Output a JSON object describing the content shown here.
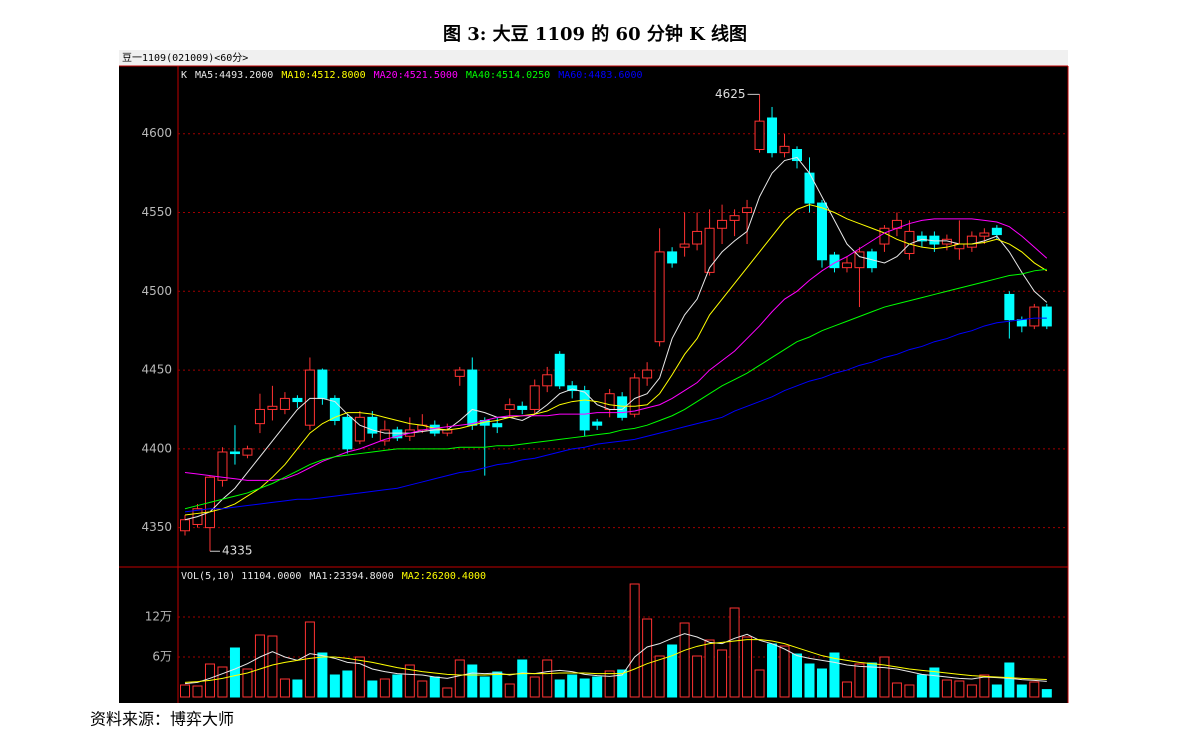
{
  "title": "图 3:  大豆 1109 的 60 分钟 K 线图",
  "source": "资料来源：博弈大师",
  "chart_data": [
    {
      "type": "candlestick",
      "header": "豆一1109(021009)<60分>",
      "label": "K",
      "open": [
        4348,
        4352,
        4350,
        4380,
        4398,
        4396,
        4416,
        4425,
        4425,
        4432,
        4415,
        4450,
        4432,
        4420,
        4405,
        4420,
        4405,
        4412,
        4408,
        4412,
        4415,
        4410,
        4446,
        4450,
        4418,
        4416,
        4425,
        4427,
        4425,
        4440,
        4460,
        4440,
        4437,
        4417,
        4425,
        4433,
        4422,
        4445,
        4468,
        4525,
        4528,
        4530,
        4512,
        4540,
        4545,
        4550,
        4590,
        4610,
        4588,
        4590,
        4575,
        4556,
        4523,
        4515,
        4515,
        4525,
        4530,
        4540,
        4524,
        4535,
        4535,
        4530,
        4527,
        4528,
        4535,
        4540,
        4498,
        4482,
        4478,
        4490
      ],
      "high": [
        4358,
        4365,
        4383,
        4401,
        4415,
        4402,
        4435,
        4440,
        4436,
        4434,
        4458,
        4451,
        4434,
        4422,
        4424,
        4424,
        4418,
        4414,
        4420,
        4422,
        4418,
        4416,
        4452,
        4458,
        4420,
        4420,
        4432,
        4430,
        4444,
        4452,
        4462,
        4443,
        4440,
        4419,
        4438,
        4436,
        4448,
        4455,
        4540,
        4528,
        4550,
        4550,
        4552,
        4555,
        4552,
        4558,
        4625,
        4617,
        4600,
        4592,
        4585,
        4558,
        4525,
        4522,
        4528,
        4527,
        4542,
        4550,
        4545,
        4538,
        4538,
        4536,
        4545,
        4538,
        4540,
        4542,
        4500,
        4484,
        4492,
        4492
      ],
      "low": [
        4345,
        4350,
        4335,
        4376,
        4390,
        4394,
        4410,
        4418,
        4422,
        4426,
        4412,
        4428,
        4415,
        4397,
        4403,
        4407,
        4402,
        4405,
        4405,
        4410,
        4408,
        4408,
        4440,
        4412,
        4383,
        4410,
        4420,
        4422,
        4422,
        4436,
        4438,
        4432,
        4408,
        4412,
        4420,
        4418,
        4420,
        4440,
        4465,
        4515,
        4522,
        4526,
        4510,
        4530,
        4535,
        4530,
        4588,
        4585,
        4585,
        4578,
        4550,
        4515,
        4512,
        4512,
        4490,
        4512,
        4525,
        4535,
        4520,
        4528,
        4525,
        4526,
        4520,
        4525,
        4530,
        4533,
        4470,
        4474,
        4476,
        4476
      ],
      "close": [
        4355,
        4362,
        4382,
        4398,
        4397,
        4400,
        4425,
        4427,
        4432,
        4430,
        4450,
        4432,
        4418,
        4400,
        4420,
        4410,
        4412,
        4407,
        4412,
        4415,
        4410,
        4412,
        4450,
        4415,
        4415,
        4414,
        4428,
        4425,
        4440,
        4447,
        4440,
        4437,
        4412,
        4415,
        4435,
        4420,
        4445,
        4450,
        4525,
        4518,
        4530,
        4538,
        4540,
        4545,
        4548,
        4553,
        4608,
        4588,
        4592,
        4583,
        4556,
        4520,
        4515,
        4518,
        4525,
        4515,
        4540,
        4545,
        4538,
        4532,
        4530,
        4533,
        4530,
        4535,
        4537,
        4536,
        4482,
        4478,
        4490,
        4478
      ],
      "up_color": "#ff3232",
      "down_color": "#00ffff",
      "ylim": [
        4325,
        4643
      ],
      "yticks": [
        4350,
        4400,
        4450,
        4500,
        4550,
        4600
      ],
      "grid": true,
      "annotations": [
        4625,
        4335
      ],
      "series": [
        {
          "name": "MA5:4493.2000",
          "color": "#e8e8e8",
          "values": [
            4355,
            4357,
            4360,
            4368,
            4375,
            4385,
            4395,
            4405,
            4415,
            4425,
            4432,
            4432,
            4430,
            4422,
            4415,
            4412,
            4410,
            4410,
            4410,
            4411,
            4412,
            4412,
            4418,
            4425,
            4423,
            4420,
            4420,
            4418,
            4422,
            4428,
            4435,
            4438,
            4436,
            4428,
            4425,
            4425,
            4432,
            4435,
            4445,
            4470,
            4485,
            4495,
            4515,
            4525,
            4532,
            4538,
            4560,
            4575,
            4583,
            4585,
            4575,
            4560,
            4545,
            4530,
            4522,
            4520,
            4518,
            4522,
            4530,
            4533,
            4532,
            4532,
            4530,
            4530,
            4532,
            4535,
            4525,
            4512,
            4500,
            4493
          ]
        },
        {
          "name": "MA10:4512.8000",
          "color": "#ffff00",
          "values": [
            4358,
            4359,
            4360,
            4362,
            4365,
            4370,
            4375,
            4382,
            4390,
            4400,
            4410,
            4416,
            4420,
            4423,
            4423,
            4422,
            4420,
            4418,
            4416,
            4415,
            4413,
            4412,
            4413,
            4415,
            4417,
            4418,
            4420,
            4421,
            4422,
            4424,
            4428,
            4430,
            4431,
            4430,
            4428,
            4427,
            4427,
            4428,
            4435,
            4447,
            4460,
            4470,
            4485,
            4495,
            4505,
            4515,
            4525,
            4535,
            4545,
            4552,
            4555,
            4553,
            4550,
            4546,
            4543,
            4540,
            4537,
            4533,
            4530,
            4528,
            4527,
            4528,
            4530,
            4530,
            4531,
            4533,
            4530,
            4525,
            4518,
            4513
          ]
        },
        {
          "name": "MA20:4521.5000",
          "color": "#ff00ff",
          "values": [
            4385,
            4384,
            4383,
            4382,
            4381,
            4380,
            4380,
            4380,
            4381,
            4384,
            4388,
            4392,
            4395,
            4398,
            4400,
            4403,
            4406,
            4408,
            4410,
            4412,
            4413,
            4414,
            4415,
            4416,
            4418,
            4420,
            4421,
            4421,
            4421,
            4421,
            4422,
            4422,
            4422,
            4423,
            4423,
            4423,
            4424,
            4426,
            4428,
            4432,
            4437,
            4442,
            4450,
            4456,
            4462,
            4470,
            4478,
            4487,
            4495,
            4500,
            4507,
            4513,
            4518,
            4522,
            4527,
            4532,
            4537,
            4540,
            4543,
            4545,
            4546,
            4546,
            4546,
            4546,
            4545,
            4544,
            4541,
            4535,
            4528,
            4521
          ]
        },
        {
          "name": "MA40:4514.0250",
          "color": "#00ff00",
          "values": [
            4362,
            4364,
            4366,
            4368,
            4370,
            4372,
            4375,
            4378,
            4382,
            4386,
            4390,
            4393,
            4395,
            4396,
            4397,
            4398,
            4399,
            4400,
            4400,
            4400,
            4400,
            4400,
            4401,
            4401,
            4401,
            4402,
            4402,
            4403,
            4404,
            4405,
            4406,
            4407,
            4408,
            4409,
            4410,
            4412,
            4413,
            4415,
            4418,
            4421,
            4425,
            4430,
            4435,
            4440,
            4444,
            4448,
            4453,
            4458,
            4463,
            4468,
            4471,
            4475,
            4478,
            4481,
            4484,
            4487,
            4490,
            4492,
            4494,
            4496,
            4498,
            4500,
            4502,
            4504,
            4506,
            4508,
            4510,
            4511,
            4513,
            4514
          ]
        },
        {
          "name": "MA60:4483.6000",
          "color": "#0000ff",
          "values": [
            4360,
            4361,
            4362,
            4362,
            4363,
            4364,
            4365,
            4366,
            4367,
            4368,
            4368,
            4369,
            4370,
            4371,
            4372,
            4373,
            4374,
            4375,
            4377,
            4379,
            4381,
            4383,
            4385,
            4386,
            4388,
            4390,
            4391,
            4393,
            4394,
            4396,
            4398,
            4400,
            4401,
            4403,
            4404,
            4405,
            4406,
            4408,
            4410,
            4412,
            4414,
            4416,
            4418,
            4420,
            4424,
            4427,
            4430,
            4433,
            4437,
            4440,
            4443,
            4445,
            4448,
            4450,
            4453,
            4455,
            4458,
            4460,
            4463,
            4465,
            4468,
            4470,
            4473,
            4475,
            4478,
            4480,
            4481,
            4482,
            4483,
            4483
          ]
        }
      ]
    },
    {
      "type": "bar",
      "title": "VOL(5,10) 11104.0000",
      "values": [
        18000,
        16500,
        49500,
        45000,
        73500,
        42000,
        93000,
        91500,
        27000,
        25500,
        112500,
        66000,
        33000,
        39000,
        60000,
        24000,
        27000,
        33000,
        48000,
        24000,
        30000,
        13500,
        55500,
        48000,
        30000,
        37500,
        19500,
        55500,
        30000,
        55500,
        25500,
        33000,
        27000,
        30000,
        39000,
        40500,
        169500,
        117000,
        61500,
        78000,
        111000,
        61500,
        85500,
        70500,
        133500,
        90000,
        40500,
        79500,
        76500,
        64500,
        49500,
        42000,
        66000,
        22500,
        49500,
        51000,
        60000,
        21000,
        18000,
        33000,
        43500,
        25500,
        24000,
        18000,
        33000,
        18000,
        51000,
        18000,
        22500,
        11104
      ],
      "ylim": [
        -9000,
        195000
      ],
      "yticks": [
        {
          "value": 60000,
          "label": "6万"
        },
        {
          "value": 120000,
          "label": "12万"
        }
      ],
      "grid": true,
      "series": [
        {
          "name": "MA1:23394.8000",
          "color": "#e8e8e8",
          "values": [
            20000,
            22000,
            28000,
            35000,
            42000,
            50000,
            60000,
            68000,
            60000,
            55000,
            65000,
            62000,
            58000,
            52000,
            50000,
            42000,
            38000,
            35000,
            34000,
            33000,
            30000,
            28000,
            32000,
            36000,
            35000,
            36000,
            33000,
            36000,
            35000,
            38000,
            40000,
            38000,
            34000,
            32000,
            31000,
            33000,
            60000,
            75000,
            80000,
            88000,
            95000,
            90000,
            82000,
            80000,
            88000,
            94000,
            85000,
            80000,
            72000,
            62000,
            58000,
            55000,
            52000,
            48000,
            46000,
            45000,
            44000,
            42000,
            38000,
            34000,
            32000,
            30000,
            28000,
            27000,
            30000,
            29000,
            28000,
            26000,
            25000,
            23395
          ]
        },
        {
          "name": "MA2:26200.4000",
          "color": "#ffff00",
          "values": [
            22000,
            23000,
            25000,
            28000,
            32000,
            36000,
            42000,
            48000,
            52000,
            55000,
            58000,
            60000,
            60000,
            58000,
            55000,
            52000,
            48000,
            44000,
            41000,
            38000,
            36000,
            34000,
            33000,
            33000,
            33000,
            34000,
            34000,
            35000,
            35000,
            35000,
            36000,
            36000,
            36000,
            35000,
            35000,
            35000,
            42000,
            50000,
            56000,
            62000,
            70000,
            76000,
            80000,
            82000,
            84000,
            86000,
            86000,
            84000,
            80000,
            74000,
            68000,
            62000,
            58000,
            55000,
            52000,
            50000,
            48000,
            45000,
            42000,
            40000,
            38000,
            36000,
            34000,
            32000,
            31000,
            30000,
            29000,
            28000,
            27000,
            26200
          ]
        }
      ]
    }
  ]
}
